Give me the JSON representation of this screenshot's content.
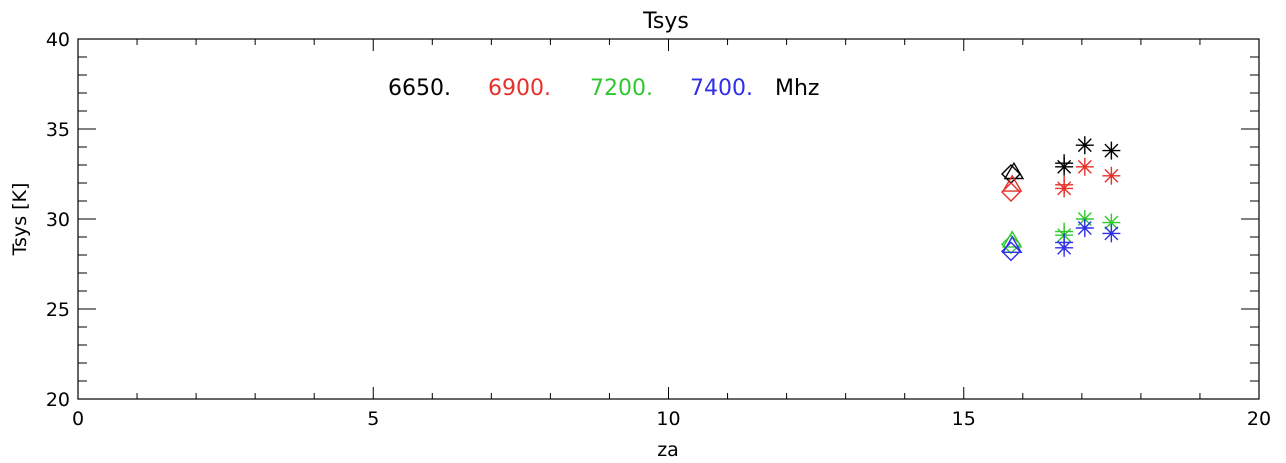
{
  "chart_data": {
    "type": "scatter",
    "title": "Tsys",
    "xlabel": "za",
    "ylabel": "Tsys [K]",
    "xlim": [
      0,
      20
    ],
    "ylim": [
      20,
      40
    ],
    "xticks": [
      "0",
      "5",
      "10",
      "15",
      "20"
    ],
    "yticks": [
      "20",
      "25",
      "30",
      "35",
      "40"
    ],
    "x_minor_step": 1,
    "y_minor_step": 1,
    "grid": false,
    "legend": {
      "placement": "top-left",
      "entries": [
        {
          "label": "6650.",
          "color": "#000000"
        },
        {
          "label": "6900.",
          "color": "#e8302a"
        },
        {
          "label": "7200.",
          "color": "#2ec82e"
        },
        {
          "label": "7400.",
          "color": "#2f2fe8"
        }
      ],
      "unit": "Mhz"
    },
    "series": [
      {
        "color": "#000000",
        "points": [
          {
            "x": 15.8,
            "y": 32.5,
            "marker": "diamond"
          },
          {
            "x": 15.85,
            "y": 32.6,
            "marker": "triangle"
          },
          {
            "x": 16.7,
            "y": 33.1,
            "marker": "plus"
          },
          {
            "x": 16.7,
            "y": 32.9,
            "marker": "asterisk"
          },
          {
            "x": 17.05,
            "y": 34.1,
            "marker": "asterisk"
          },
          {
            "x": 17.5,
            "y": 33.8,
            "marker": "asterisk"
          }
        ]
      },
      {
        "color": "#e8302a",
        "points": [
          {
            "x": 15.8,
            "y": 31.5,
            "marker": "diamond"
          },
          {
            "x": 15.82,
            "y": 31.9,
            "marker": "triangle"
          },
          {
            "x": 16.7,
            "y": 31.9,
            "marker": "plus"
          },
          {
            "x": 16.7,
            "y": 31.7,
            "marker": "asterisk"
          },
          {
            "x": 17.05,
            "y": 32.9,
            "marker": "asterisk"
          },
          {
            "x": 17.5,
            "y": 32.4,
            "marker": "asterisk"
          }
        ]
      },
      {
        "color": "#2ec82e",
        "points": [
          {
            "x": 15.8,
            "y": 28.6,
            "marker": "diamond"
          },
          {
            "x": 15.82,
            "y": 28.8,
            "marker": "triangle"
          },
          {
            "x": 16.7,
            "y": 29.3,
            "marker": "plus"
          },
          {
            "x": 16.7,
            "y": 29.1,
            "marker": "asterisk"
          },
          {
            "x": 17.05,
            "y": 30.0,
            "marker": "asterisk"
          },
          {
            "x": 17.5,
            "y": 29.8,
            "marker": "asterisk"
          }
        ]
      },
      {
        "color": "#2f2fe8",
        "points": [
          {
            "x": 15.8,
            "y": 28.2,
            "marker": "diamond"
          },
          {
            "x": 15.82,
            "y": 28.5,
            "marker": "triangle"
          },
          {
            "x": 16.7,
            "y": 28.7,
            "marker": "plus"
          },
          {
            "x": 16.7,
            "y": 28.4,
            "marker": "asterisk"
          },
          {
            "x": 17.05,
            "y": 29.5,
            "marker": "asterisk"
          },
          {
            "x": 17.5,
            "y": 29.2,
            "marker": "asterisk"
          }
        ]
      }
    ]
  }
}
